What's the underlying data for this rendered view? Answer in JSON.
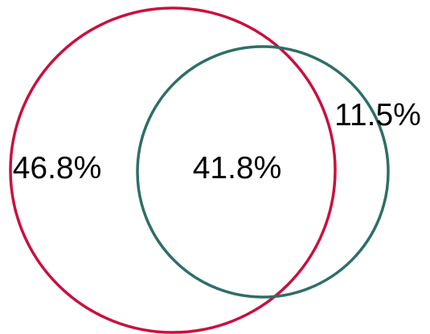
{
  "venn": {
    "colors": {
      "left_circle": "#c8103e",
      "right_circle": "#2e6f66"
    },
    "regions": {
      "left_only": "46.8%",
      "overlap": "41.8%",
      "right_only": "11.5%"
    }
  }
}
